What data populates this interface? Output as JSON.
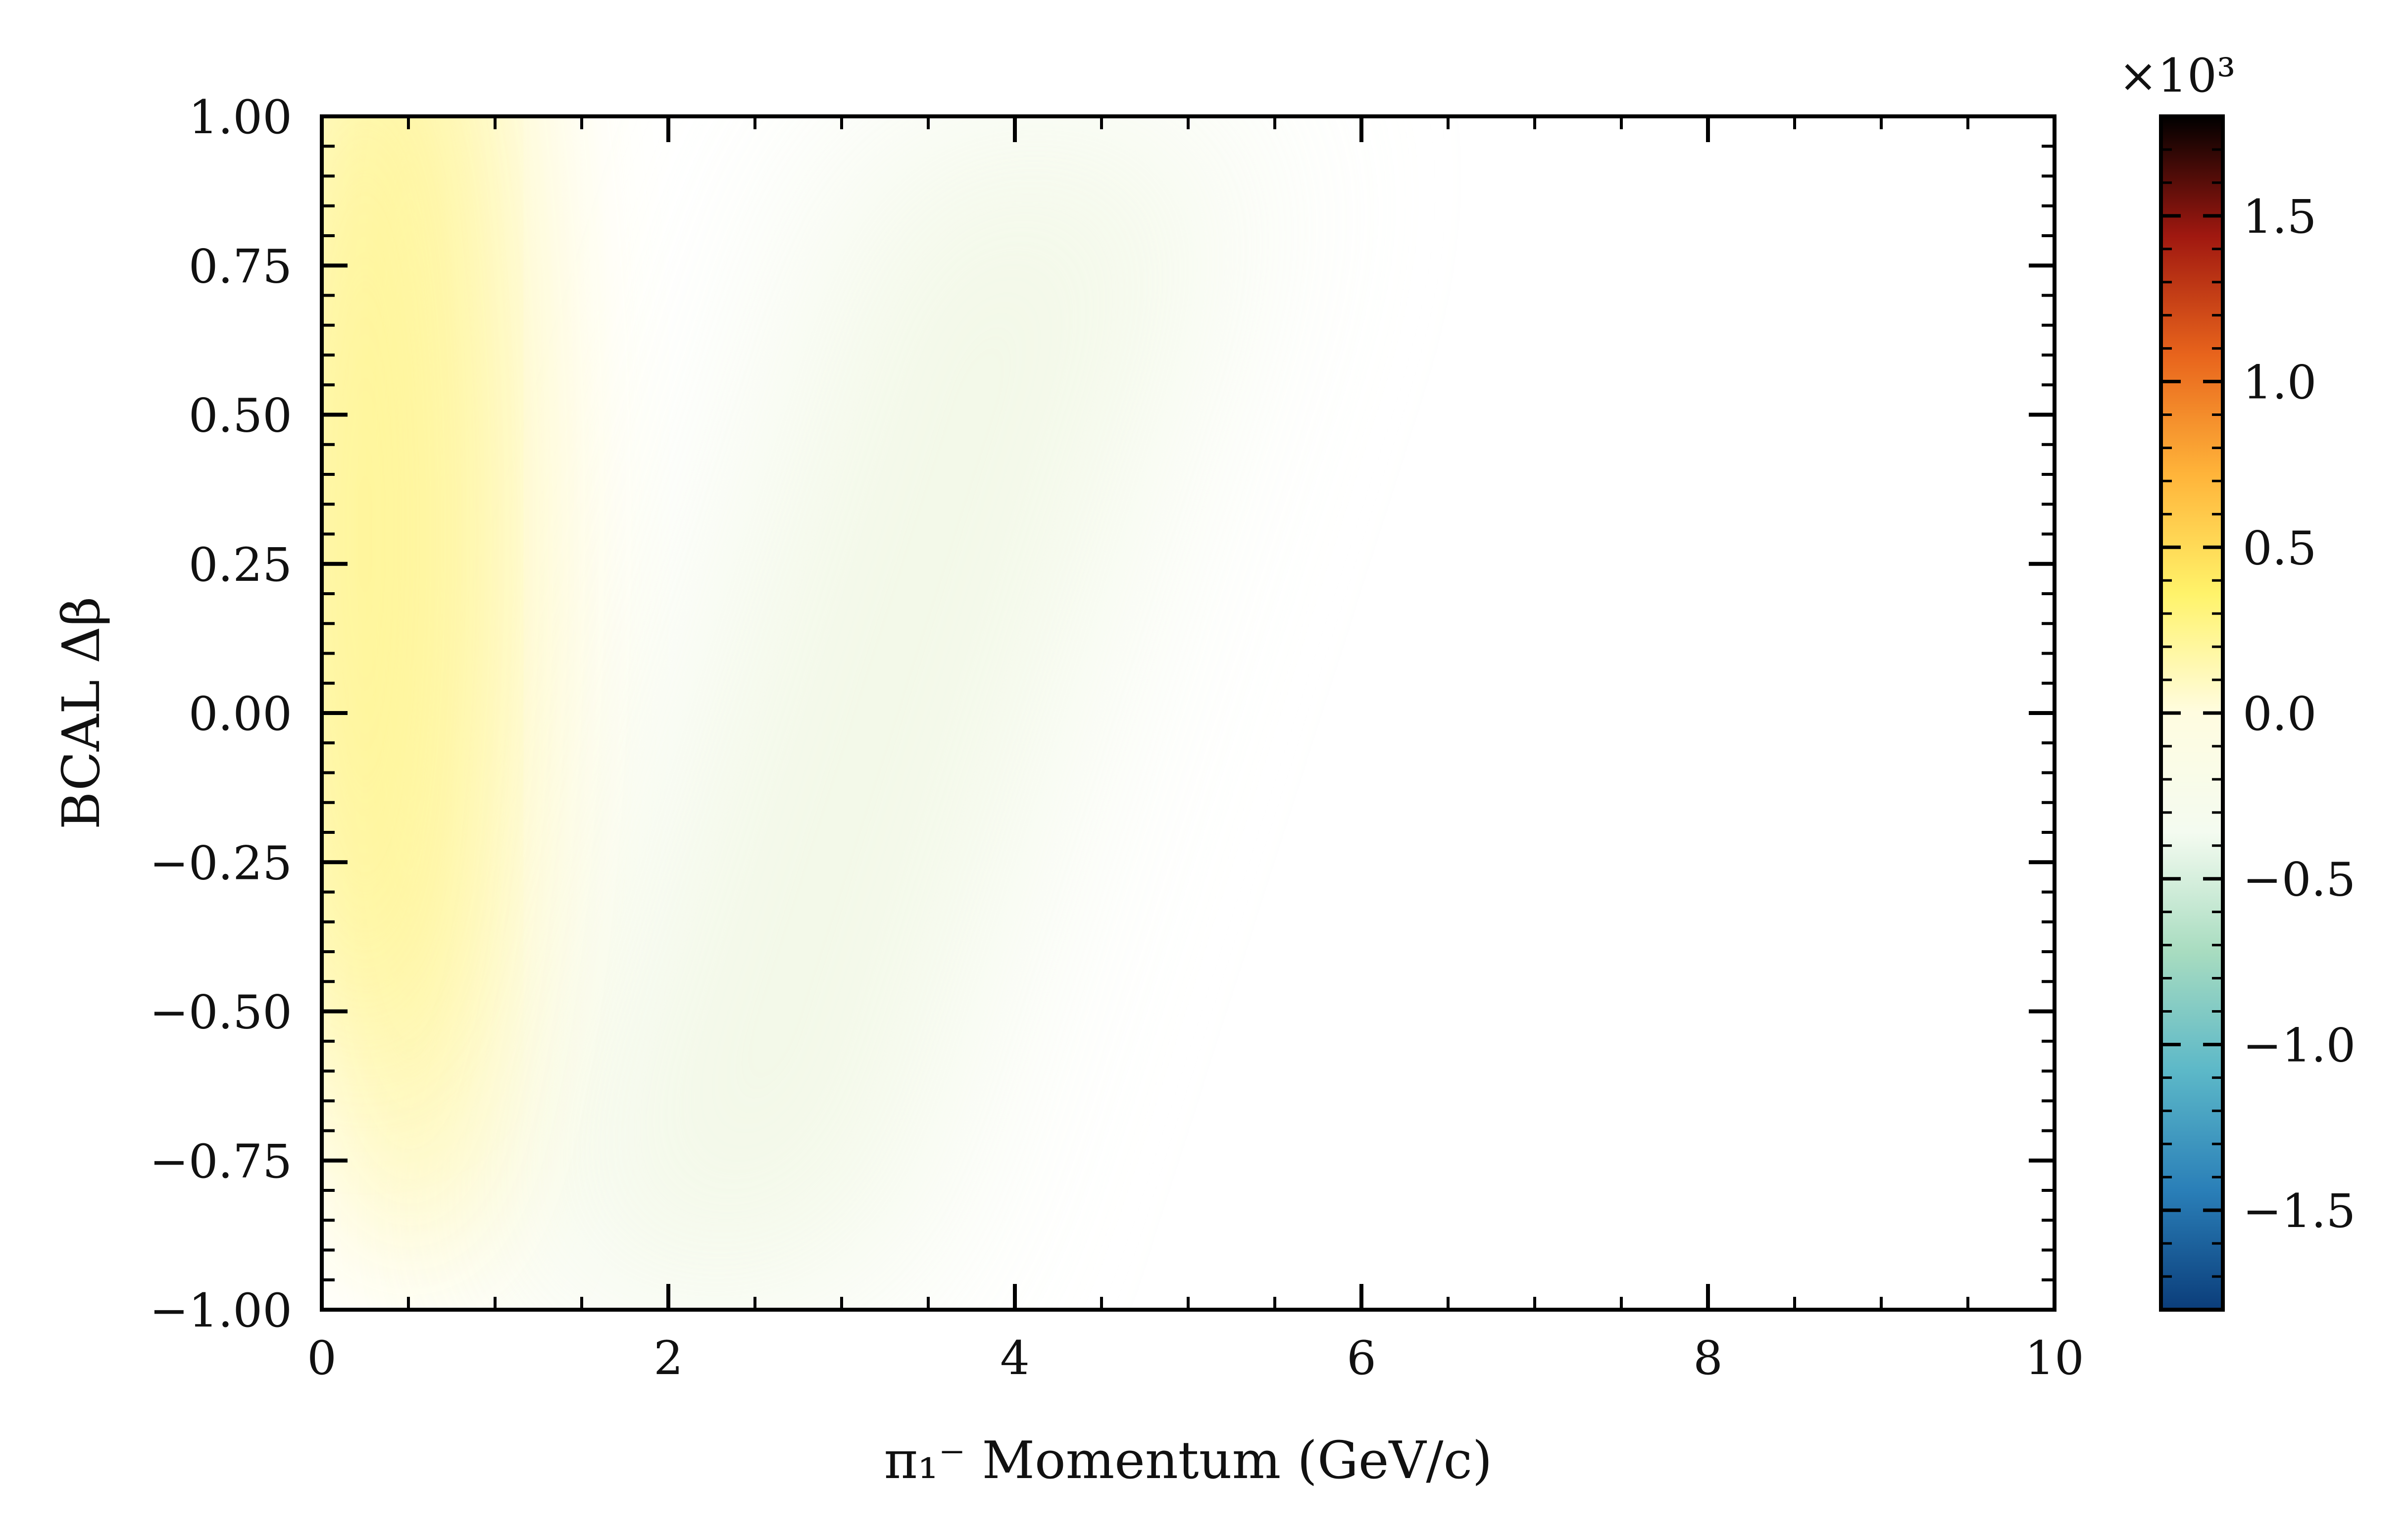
{
  "chart_data": {
    "type": "heatmap",
    "xlabel": "π₁⁻ Momentum (GeV/c)",
    "ylabel": "BCAL Δβ",
    "xlim": [
      0,
      10
    ],
    "ylim": [
      -1.0,
      1.0
    ],
    "x_ticks": [
      "0",
      "2",
      "4",
      "6",
      "8",
      "10"
    ],
    "y_ticks": [
      "−1.00",
      "−0.75",
      "−0.50",
      "−0.25",
      "0.00",
      "0.25",
      "0.50",
      "0.75",
      "1.00"
    ],
    "colorbar": {
      "range": [
        -1800,
        1800
      ],
      "multiplier": "×10³",
      "ticks": [
        "−1.5",
        "−1.0",
        "−0.5",
        "0.0",
        "0.5",
        "1.0",
        "1.5"
      ],
      "colormap": [
        "#0b3d7a",
        "#2a7fb8",
        "#5cb8c8",
        "#a8dcc0",
        "#f4fbf0",
        "#fffce0",
        "#fff36a",
        "#ffb43a",
        "#e8641c",
        "#a01810",
        "#000000"
      ]
    },
    "grid": false,
    "density_regions": [
      {
        "name": "low-momentum band",
        "x_range": [
          0.1,
          1.6
        ],
        "y_center": 0.3,
        "peak_value": 400
      },
      {
        "name": "diagonal band",
        "x_range": [
          1.0,
          5.0
        ],
        "y_from": -1.0,
        "y_to": 1.0,
        "peak_value": 40
      }
    ]
  }
}
